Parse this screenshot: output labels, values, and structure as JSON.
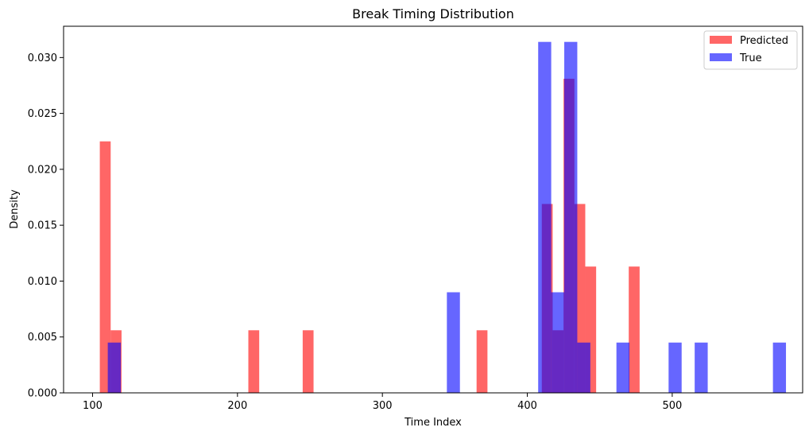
{
  "chart_data": {
    "type": "bar",
    "title": "Break Timing Distribution",
    "xlabel": "Time Index",
    "ylabel": "Density",
    "xlim": [
      80,
      590
    ],
    "ylim": [
      0,
      0.0328
    ],
    "xticks": [
      100,
      200,
      300,
      400,
      500
    ],
    "yticks": [
      0.0,
      0.005,
      0.01,
      0.015,
      0.02,
      0.025,
      0.03
    ],
    "ytick_labels": [
      "0.000",
      "0.005",
      "0.010",
      "0.015",
      "0.020",
      "0.025",
      "0.030"
    ],
    "legend_position": "top-right",
    "series": [
      {
        "name": "Predicted",
        "color": "#ff0000",
        "opacity": 0.6,
        "bins": [
          {
            "x0": 105.0,
            "x1": 112.5,
            "density": 0.0225
          },
          {
            "x0": 112.5,
            "x1": 120.0,
            "density": 0.0056
          },
          {
            "x0": 207.5,
            "x1": 215.0,
            "density": 0.0056
          },
          {
            "x0": 245.0,
            "x1": 252.5,
            "density": 0.0056
          },
          {
            "x0": 365.0,
            "x1": 372.5,
            "density": 0.0056
          },
          {
            "x0": 410.0,
            "x1": 417.5,
            "density": 0.0169
          },
          {
            "x0": 417.5,
            "x1": 425.0,
            "density": 0.0056
          },
          {
            "x0": 425.0,
            "x1": 432.5,
            "density": 0.0281
          },
          {
            "x0": 432.5,
            "x1": 440.0,
            "density": 0.0169
          },
          {
            "x0": 440.0,
            "x1": 447.5,
            "density": 0.0113
          },
          {
            "x0": 470.0,
            "x1": 477.5,
            "density": 0.0113
          }
        ]
      },
      {
        "name": "True",
        "color": "#0000ff",
        "opacity": 0.6,
        "bins": [
          {
            "x0": 110.5,
            "x1": 119.5,
            "density": 0.0045
          },
          {
            "x0": 344.5,
            "x1": 353.5,
            "density": 0.009
          },
          {
            "x0": 407.5,
            "x1": 416.5,
            "density": 0.0314
          },
          {
            "x0": 416.5,
            "x1": 425.5,
            "density": 0.009
          },
          {
            "x0": 425.5,
            "x1": 434.5,
            "density": 0.0314
          },
          {
            "x0": 434.5,
            "x1": 443.5,
            "density": 0.0045
          },
          {
            "x0": 461.5,
            "x1": 470.5,
            "density": 0.0045
          },
          {
            "x0": 497.5,
            "x1": 506.5,
            "density": 0.0045
          },
          {
            "x0": 515.5,
            "x1": 524.5,
            "density": 0.0045
          },
          {
            "x0": 569.5,
            "x1": 578.5,
            "density": 0.0045
          }
        ]
      }
    ]
  }
}
